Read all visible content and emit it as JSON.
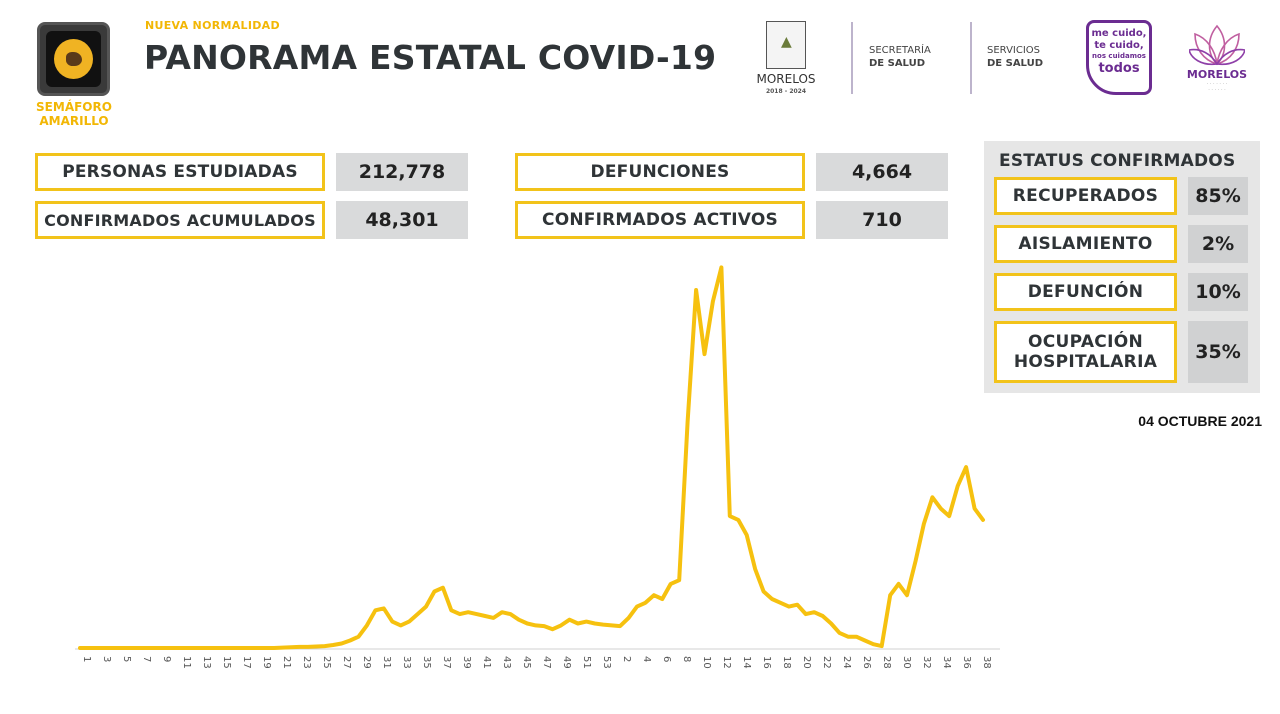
{
  "header": {
    "semaforo_label": "SEMÁFORO AMARILLO",
    "kicker": "NUEVA NORMALIDAD",
    "title": "PANORAMA ESTATAL COVID-19"
  },
  "logos": {
    "morelos_name": "MORELOS",
    "morelos_years": "2018 - 2024",
    "secretaria_line1": "SECRETARÍA",
    "secretaria_line2": "DE SALUD",
    "servicios_line1": "SERVICIOS",
    "servicios_line2": "DE SALUD",
    "cuido_line1": "me cuido,",
    "cuido_line2": "te cuido,",
    "cuido_line3": "nos cuidamos",
    "cuido_line4": "todos",
    "morelos2_name": "MORELOS"
  },
  "stats": [
    {
      "label": "PERSONAS ESTUDIADAS",
      "value": "212,778"
    },
    {
      "label": "CONFIRMADOS ACUMULADOS",
      "value": "48,301"
    },
    {
      "label": "DEFUNCIONES",
      "value": "4,664"
    },
    {
      "label": "CONFIRMADOS ACTIVOS",
      "value": "710"
    }
  ],
  "status": {
    "title": "ESTATUS CONFIRMADOS",
    "items": [
      {
        "label": "RECUPERADOS",
        "value": "85%"
      },
      {
        "label": "AISLAMIENTO",
        "value": "2%"
      },
      {
        "label": "DEFUNCIÓN",
        "value": "10%"
      },
      {
        "label": "OCUPACIÓN HOSPITALARIA",
        "value": "35%"
      }
    ]
  },
  "date": "04 OCTUBRE 2021",
  "colors": {
    "accent": "#f2c31a",
    "line": "#f6c10f",
    "title": "#2f3437"
  },
  "chart_data": {
    "type": "line",
    "title": "",
    "xlabel": "",
    "ylabel": "",
    "x_tick_labels": [
      "1",
      "3",
      "5",
      "7",
      "9",
      "11",
      "13",
      "15",
      "17",
      "19",
      "21",
      "23",
      "25",
      "27",
      "29",
      "31",
      "33",
      "35",
      "37",
      "39",
      "41",
      "43",
      "45",
      "47",
      "49",
      "51",
      "53",
      "2",
      "4",
      "6",
      "8",
      "10",
      "12",
      "14",
      "16",
      "18",
      "20",
      "22",
      "24",
      "26",
      "28",
      "30",
      "32",
      "34",
      "36",
      "38"
    ],
    "ylim": [
      0,
      100
    ],
    "grid": false,
    "legend": "none",
    "series": [
      {
        "values": [
          0,
          0,
          0,
          0,
          0,
          0,
          0,
          0,
          0,
          0,
          0,
          0,
          0,
          0,
          0,
          0,
          0,
          0,
          0,
          0,
          0,
          0,
          0,
          0,
          0.1,
          0.2,
          0.3,
          0.3,
          0.4,
          0.5,
          0.8,
          1.2,
          2,
          3,
          6,
          10,
          10.5,
          7,
          6,
          7,
          9,
          11,
          15,
          16,
          10,
          9,
          9.5,
          9,
          8.5,
          8,
          9.5,
          9,
          7.5,
          6.5,
          6,
          5.8,
          5,
          6,
          7.5,
          6.5,
          7,
          6.5,
          6.2,
          6,
          5.8,
          8,
          11,
          12,
          14,
          13,
          17,
          18,
          60,
          95,
          78,
          92,
          101,
          35,
          34,
          30,
          21,
          15,
          13,
          12,
          11,
          11.5,
          9,
          9.5,
          8.5,
          6.5,
          4,
          3,
          3,
          2,
          1,
          0.5,
          14,
          17,
          14,
          23,
          33,
          40,
          37,
          35,
          43,
          48,
          37,
          34
        ]
      }
    ]
  }
}
